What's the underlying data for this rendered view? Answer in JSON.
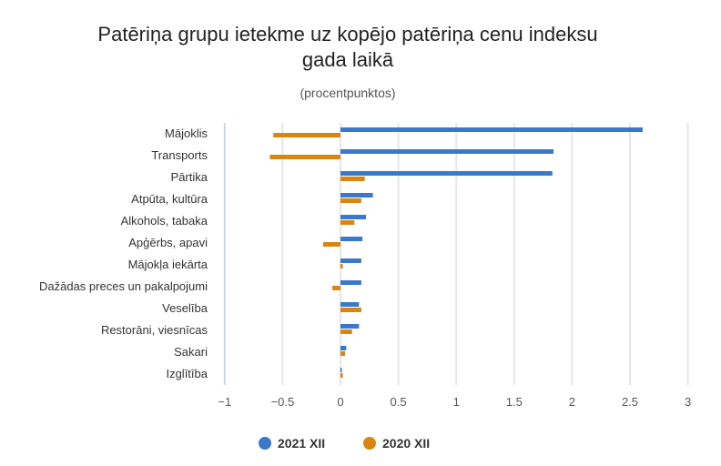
{
  "chart_data": {
    "type": "bar",
    "orientation": "horizontal",
    "title": "Patēriņa grupu ietekme uz kopējo patēriņa cenu indeksu gada laikā",
    "title_lines": [
      "Patēriņa grupu ietekme uz kopējo patēriņa cenu indeksu",
      "gada laikā"
    ],
    "subtitle": "(procentpunktos)",
    "xlabel": "",
    "ylabel": "",
    "categories": [
      "Mājoklis",
      "Transports",
      "Pārtika",
      "Atpūta, kultūra",
      "Alkohols, tabaka",
      "Apģērbs, apavi",
      "Mājokļa iekārta",
      "Dažādas preces un pakalpojumi",
      "Veselība",
      "Restorāni, viesnīcas",
      "Sakari",
      "Izglītība"
    ],
    "series": [
      {
        "name": "2021 XII",
        "color": "#3a78c9",
        "values": [
          2.61,
          1.84,
          1.83,
          0.28,
          0.22,
          0.19,
          0.18,
          0.18,
          0.16,
          0.16,
          0.05,
          0.01
        ]
      },
      {
        "name": "2020 XII",
        "color": "#d9850f",
        "values": [
          -0.58,
          -0.61,
          0.21,
          0.18,
          0.12,
          -0.15,
          0.02,
          -0.07,
          0.18,
          0.1,
          0.04,
          0.02
        ]
      }
    ],
    "xlim": [
      -1,
      3
    ],
    "xticks": [
      -1,
      -0.5,
      0,
      0.5,
      1,
      1.5,
      2,
      2.5,
      3
    ],
    "xtick_labels": [
      "−1",
      "−0.5",
      "0",
      "0.5",
      "1",
      "1.5",
      "2",
      "2.5",
      "3"
    ],
    "grid": true,
    "legend_position": "bottom-center"
  }
}
